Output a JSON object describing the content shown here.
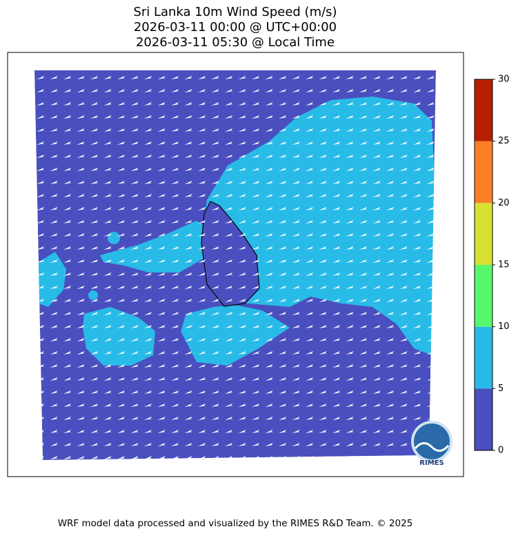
{
  "title": [
    "Sri Lanka 10m Wind Speed (m/s)",
    "2026-03-11 00:00 @ UTC+00:00",
    "2026-03-11 05:30 @ Local Time"
  ],
  "colorbar": {
    "ylim": [
      0,
      30
    ],
    "yticks": [
      0,
      5,
      10,
      15,
      20,
      25,
      30
    ],
    "colors": [
      "#4a4fbf",
      "#29bbe8",
      "#57f76e",
      "#d8e034",
      "#fb7f24",
      "#b81f00"
    ]
  },
  "logo": {
    "text": "RIMES"
  },
  "footer": "WRF model data processed and visualized by the RIMES R&D Team. © 2025"
}
